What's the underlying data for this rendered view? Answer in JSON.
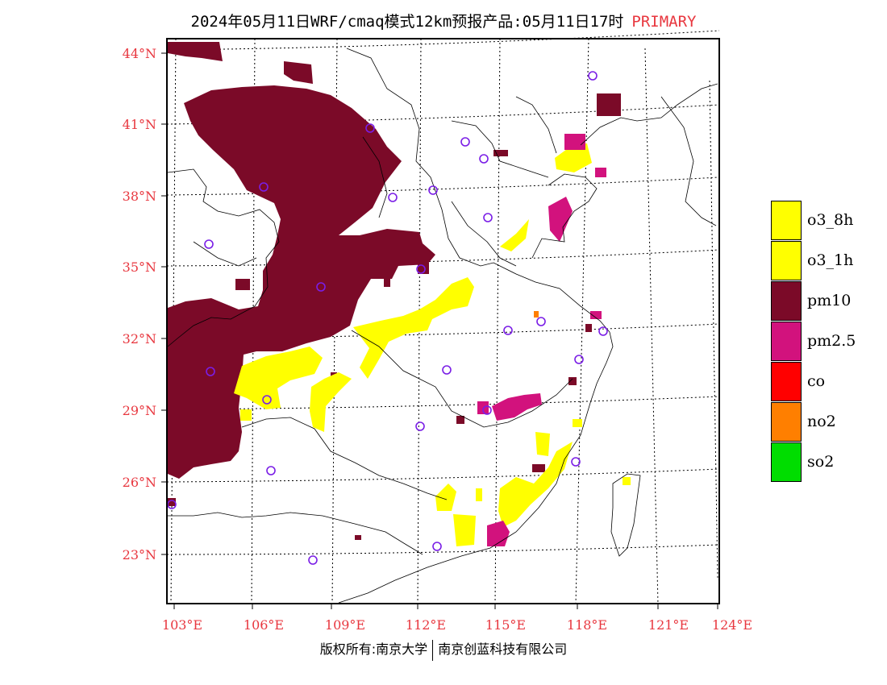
{
  "title": {
    "main": "2024年05月11日WRF/cmaq模式12km预报产品:05月11日17时",
    "tag": "PRIMARY"
  },
  "axes": {
    "lat_labels": [
      "44°N",
      "41°N",
      "38°N",
      "35°N",
      "32°N",
      "29°N",
      "26°N",
      "23°N"
    ],
    "lon_labels": [
      "103°E",
      "106°E",
      "109°E",
      "112°E",
      "115°E",
      "118°E",
      "121°E",
      "124°E"
    ]
  },
  "legend": [
    {
      "label": "o3_8h",
      "color": "#ffff00"
    },
    {
      "label": "o3_1h",
      "color": "#ffff00"
    },
    {
      "label": "pm10",
      "color": "#7b0a28"
    },
    {
      "label": "pm2.5",
      "color": "#d2127d"
    },
    {
      "label": "co",
      "color": "#ff0000"
    },
    {
      "label": "no2",
      "color": "#ff7f00"
    },
    {
      "label": "so2",
      "color": "#00dd00"
    }
  ],
  "footer": {
    "left": "版权所有:南京大学",
    "right": "南京创蓝科技有限公司"
  }
}
